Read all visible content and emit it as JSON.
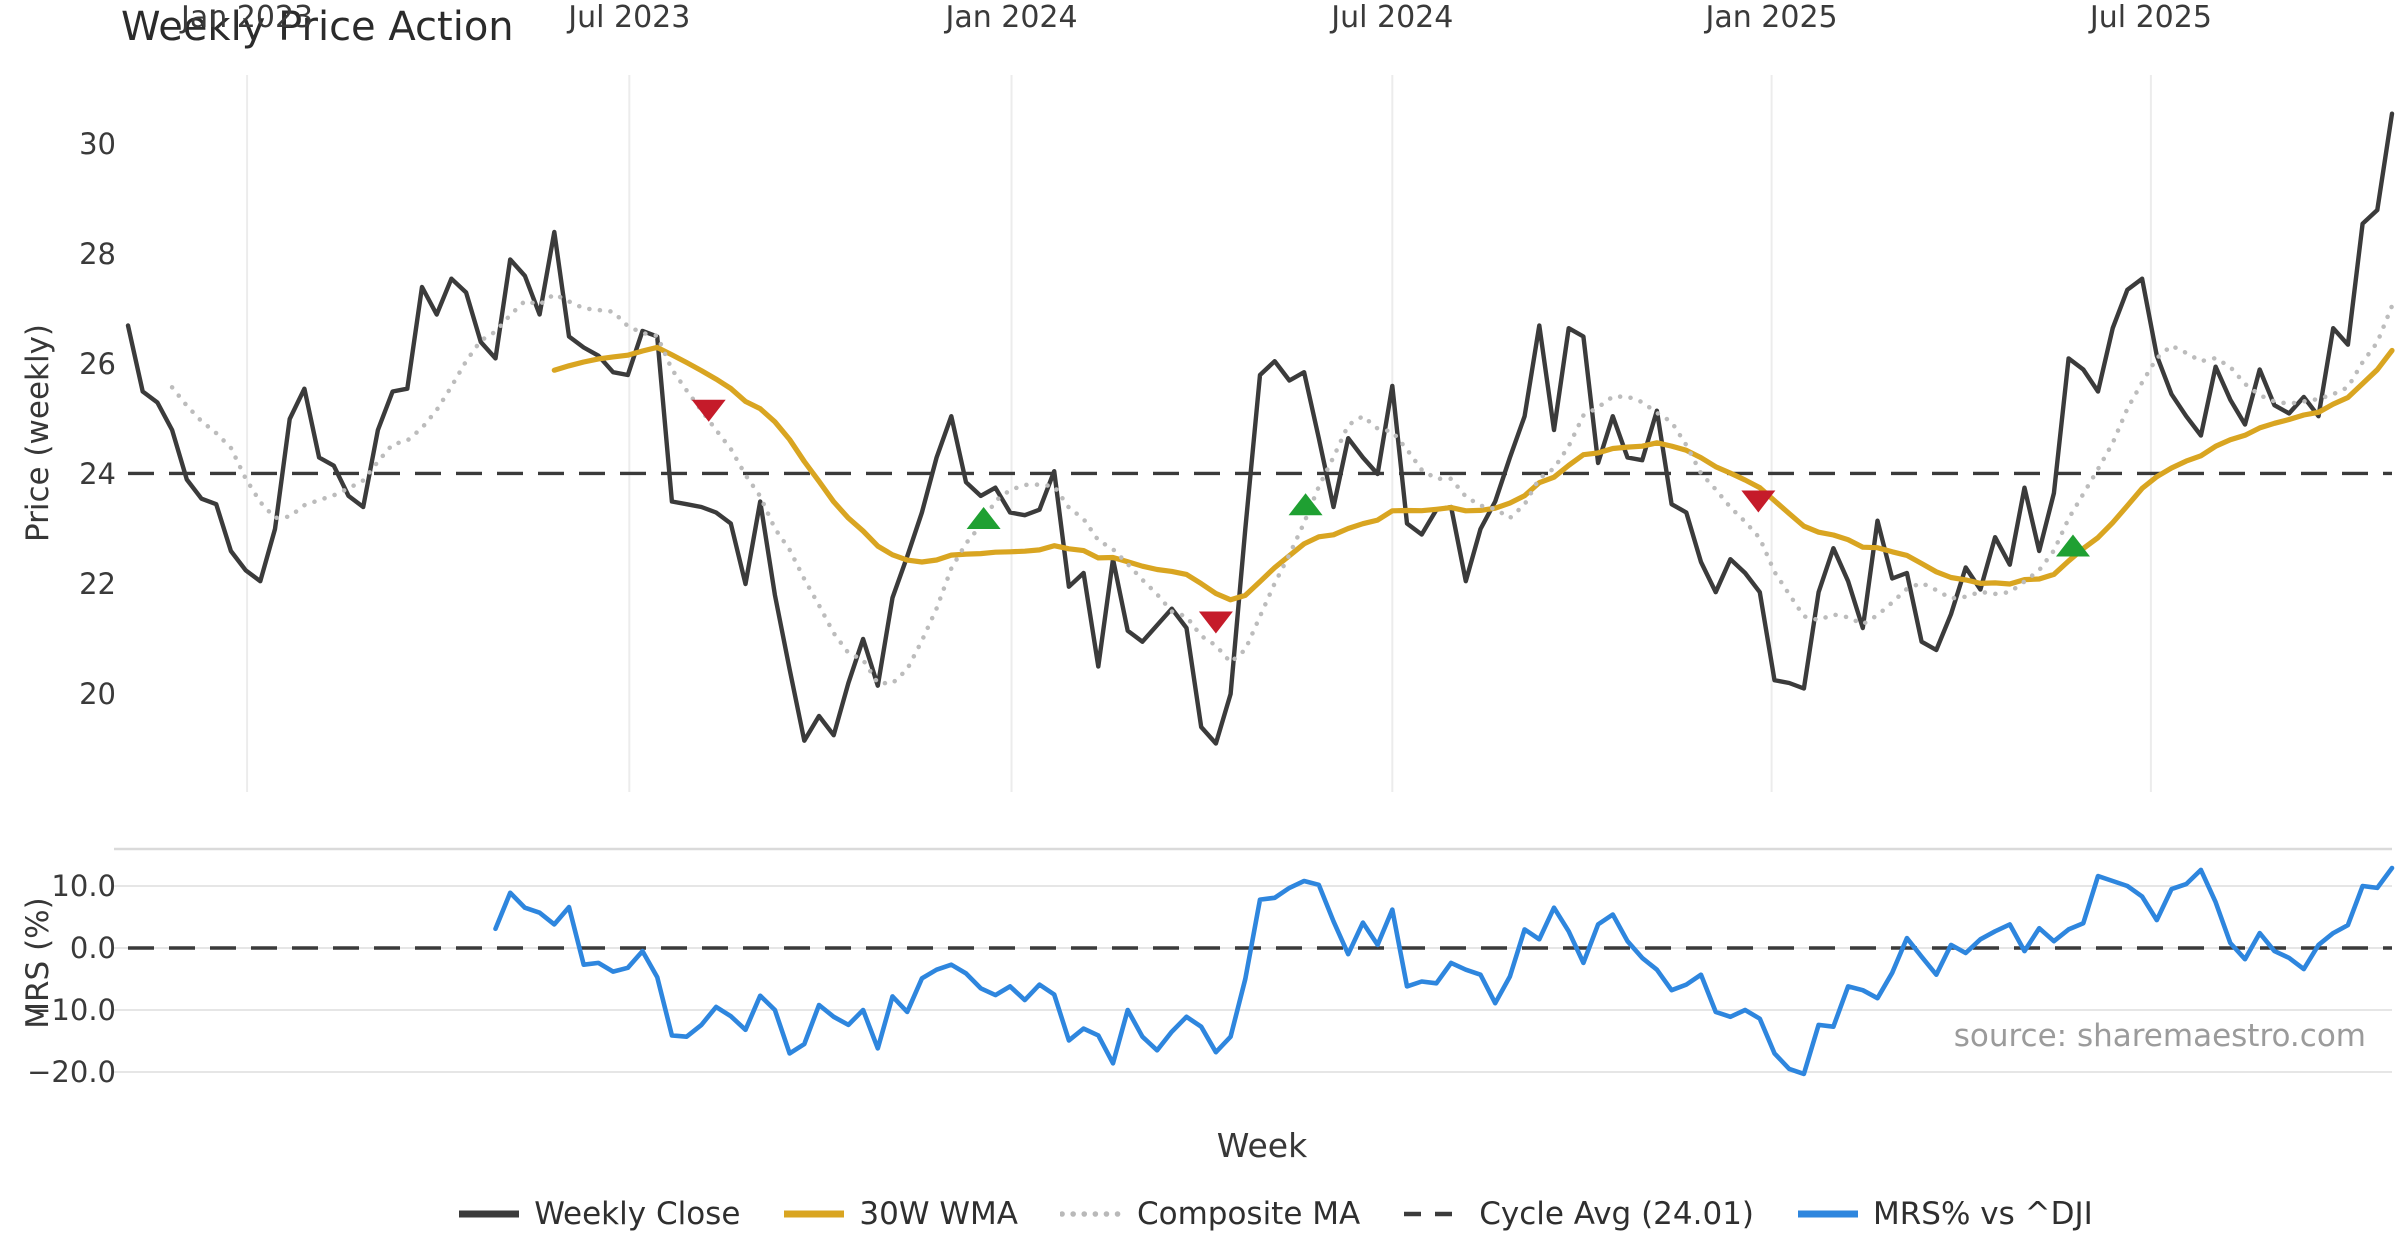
{
  "title": "Weekly Price Action",
  "source": "source: sharemaestro.com",
  "legend": [
    {
      "id": "weekly-close",
      "label": "Weekly Close",
      "style": "solid",
      "color": "#3b3b3b"
    },
    {
      "id": "wma",
      "label": "30W WMA",
      "style": "solid",
      "color": "#d9a521"
    },
    {
      "id": "composite",
      "label": "Composite MA",
      "style": "dotted",
      "color": "#b9b9b9"
    },
    {
      "id": "cycle",
      "label": "Cycle Avg (24.01)",
      "style": "dashed",
      "color": "#3b3b3b"
    },
    {
      "id": "mrs",
      "label": "MRS% vs ^DJI",
      "style": "solid",
      "color": "#2e86de"
    }
  ],
  "colors": {
    "close": "#3b3b3b",
    "wma": "#d9a521",
    "composite": "#bcbcbc",
    "cycle": "#3a3a3a",
    "mrs": "#2e86de",
    "grid_v": "#ececec",
    "grid_h": "#e6e6e6",
    "spine": "#dadada",
    "buy": "#1fa032",
    "sell": "#c51b2a"
  },
  "chart_data": {
    "type": "line",
    "title": "Weekly Price Action",
    "xlabel": "Week",
    "weeks": 155,
    "x_ticks": [
      {
        "week": 8.1,
        "label": "Jan 2023"
      },
      {
        "week": 34.1,
        "label": "Jul 2023"
      },
      {
        "week": 60.1,
        "label": "Jan 2024"
      },
      {
        "week": 86.0,
        "label": "Jul 2024"
      },
      {
        "week": 111.8,
        "label": "Jan 2025"
      },
      {
        "week": 137.6,
        "label": "Jul 2025"
      }
    ],
    "top_panel": {
      "ylabel": "Price (weekly)",
      "ylim": [
        18.2,
        31.3
      ],
      "yticks": [
        {
          "v": 30,
          "label": "30"
        },
        {
          "v": 28,
          "label": "28"
        },
        {
          "v": 26,
          "label": "26"
        },
        {
          "v": 24,
          "label": "24"
        },
        {
          "v": 22,
          "label": "22"
        },
        {
          "v": 20,
          "label": "20"
        }
      ],
      "cycle_avg": 24.01,
      "wma_window": 30,
      "composite_window": 8,
      "close": [
        26.7,
        25.5,
        25.3,
        24.8,
        23.9,
        23.55,
        23.45,
        22.6,
        22.25,
        22.05,
        23.0,
        25.0,
        25.55,
        24.3,
        24.15,
        23.6,
        23.4,
        24.8,
        25.5,
        25.55,
        27.4,
        26.9,
        27.55,
        27.3,
        26.4,
        26.1,
        27.9,
        27.6,
        26.9,
        28.4,
        26.5,
        26.3,
        26.15,
        25.85,
        25.8,
        26.6,
        26.5,
        23.5,
        23.45,
        23.4,
        23.3,
        23.1,
        22.0,
        23.5,
        21.8,
        20.45,
        19.15,
        19.6,
        19.25,
        20.2,
        21.0,
        20.15,
        21.75,
        22.5,
        23.3,
        24.3,
        25.05,
        23.85,
        23.6,
        23.75,
        23.3,
        23.25,
        23.35,
        24.05,
        21.95,
        22.2,
        20.5,
        22.45,
        21.15,
        20.95,
        21.25,
        21.55,
        21.2,
        19.4,
        19.1,
        20.0,
        23.0,
        25.8,
        26.05,
        25.7,
        25.85,
        24.65,
        23.4,
        24.65,
        24.3,
        24.0,
        25.6,
        23.1,
        22.9,
        23.35,
        23.4,
        22.05,
        23.0,
        23.5,
        24.3,
        25.05,
        26.7,
        24.8,
        26.65,
        26.5,
        24.2,
        25.05,
        24.3,
        24.25,
        25.15,
        23.45,
        23.3,
        22.4,
        21.85,
        22.45,
        22.2,
        21.85,
        20.25,
        20.2,
        20.1,
        21.85,
        22.65,
        22.05,
        21.2,
        23.15,
        22.1,
        22.2,
        20.95,
        20.8,
        21.45,
        22.3,
        21.9,
        22.85,
        22.35,
        23.75,
        22.6,
        23.65,
        26.1,
        25.9,
        25.5,
        26.65,
        27.35,
        27.55,
        26.15,
        25.45,
        25.05,
        24.7,
        25.95,
        25.35,
        24.9,
        25.9,
        25.25,
        25.1,
        25.4,
        25.05,
        26.65,
        26.35,
        28.55,
        28.8,
        30.55
      ],
      "markers": [
        {
          "week": 39.5,
          "value": 25.15,
          "type": "sell"
        },
        {
          "week": 58.2,
          "value": 23.2,
          "type": "buy"
        },
        {
          "week": 74.0,
          "value": 21.3,
          "type": "sell"
        },
        {
          "week": 80.1,
          "value": 23.45,
          "type": "buy"
        },
        {
          "week": 110.9,
          "value": 23.5,
          "type": "sell"
        },
        {
          "week": 132.3,
          "value": 22.7,
          "type": "buy"
        }
      ]
    },
    "bottom_panel": {
      "ylabel": "MRS (%)",
      "ylim": [
        -22.5,
        15.6
      ],
      "zero_line": 0,
      "yticks": [
        {
          "v": 10,
          "label": "10.0"
        },
        {
          "v": 0,
          "label": "0.0"
        },
        {
          "v": -10,
          "label": "−10.0"
        },
        {
          "v": -20,
          "label": "−20.0"
        }
      ],
      "mrs": [
        null,
        null,
        null,
        null,
        null,
        null,
        null,
        null,
        null,
        null,
        null,
        null,
        null,
        null,
        null,
        null,
        null,
        null,
        null,
        null,
        null,
        null,
        null,
        null,
        null,
        3.1,
        8.9,
        6.5,
        5.7,
        3.8,
        6.6,
        -2.7,
        -2.4,
        -3.8,
        -3.2,
        -0.5,
        -4.7,
        -14.1,
        -14.3,
        -12.4,
        -9.5,
        -11.0,
        -13.2,
        -7.7,
        -10.0,
        -17.0,
        -15.5,
        -9.2,
        -11.1,
        -12.4,
        -10.0,
        -16.2,
        -7.8,
        -10.3,
        -4.9,
        -3.5,
        -2.7,
        -4.1,
        -6.5,
        -7.6,
        -6.2,
        -8.4,
        -5.9,
        -7.5,
        -14.9,
        -13.0,
        -14.1,
        -18.6,
        -10.0,
        -14.3,
        -16.5,
        -13.5,
        -11.1,
        -12.7,
        -16.8,
        -14.3,
        -5.0,
        7.8,
        8.1,
        9.7,
        10.8,
        10.2,
        4.3,
        -1.0,
        4.1,
        0.5,
        6.2,
        -6.2,
        -5.4,
        -5.7,
        -2.4,
        -3.5,
        -4.3,
        -8.9,
        -4.6,
        3.0,
        1.4,
        6.5,
        2.7,
        -2.4,
        3.8,
        5.4,
        1.1,
        -1.6,
        -3.5,
        -6.8,
        -5.9,
        -4.3,
        -10.3,
        -11.1,
        -10.0,
        -11.4,
        -17.0,
        -19.5,
        -20.3,
        -12.4,
        -12.7,
        -6.2,
        -6.8,
        -8.1,
        -4.0,
        1.6,
        -1.4,
        -4.3,
        0.5,
        -0.8,
        1.4,
        2.7,
        3.8,
        -0.5,
        3.2,
        1.1,
        3.0,
        4.0,
        11.6,
        10.8,
        10.0,
        8.3,
        4.5,
        9.5,
        10.3,
        12.6,
        7.4,
        0.8,
        -1.8,
        2.4,
        -0.5,
        -1.6,
        -3.4,
        0.5,
        2.4,
        3.7,
        10.0,
        9.7,
        12.9
      ]
    }
  }
}
